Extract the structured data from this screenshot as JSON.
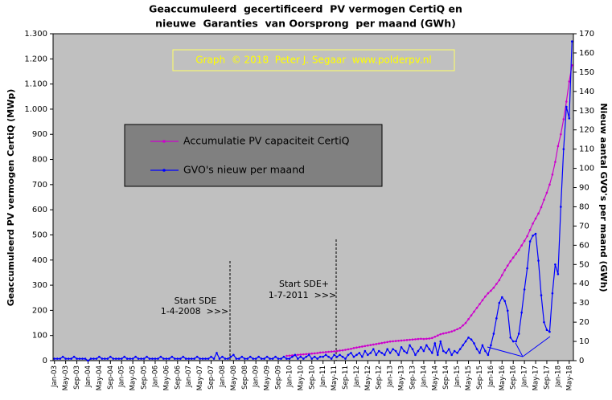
{
  "chart_data": {
    "type": "line",
    "title": [
      "Geaccumuleerd  gecertificeerd  PV vermogen CertiQ en",
      "nieuwe  Garanties  van Oorsprong  per maand (GWh)"
    ],
    "credit": "Graph  © 2018  Peter J. Segaar  www.polderpv.nl",
    "y_label": "Geaccumuleerd PV vermogen CertiQ (MWp)",
    "y2_label": "Nieuw aantal GVO's per maand (GWh)",
    "annotations": [
      {
        "lines": [
          "Start SDE",
          "1-4-2008  >>>"
        ]
      },
      {
        "lines": [
          "Start SDE+",
          "1-7-2011  >>>"
        ]
      }
    ],
    "categories": [
      "Jan-03",
      null,
      null,
      null,
      "May-03",
      null,
      null,
      null,
      "Sep-03",
      null,
      null,
      null,
      "Jan-04",
      null,
      null,
      null,
      "May-04",
      null,
      null,
      null,
      "Sep-04",
      null,
      null,
      null,
      "Jan-05",
      null,
      null,
      null,
      "May-05",
      null,
      null,
      null,
      "Sep-05",
      null,
      null,
      null,
      "Jan-06",
      null,
      null,
      null,
      "May-06",
      null,
      null,
      null,
      "Sep-06",
      null,
      null,
      null,
      "Jan-07",
      null,
      null,
      null,
      "May-07",
      null,
      null,
      null,
      "Sep-07",
      null,
      null,
      null,
      "Jan-08",
      null,
      null,
      null,
      "May-08",
      null,
      null,
      null,
      "Sep-08",
      null,
      null,
      null,
      "Jan-09",
      null,
      null,
      null,
      "May-09",
      null,
      null,
      null,
      "Sep-09",
      null,
      null,
      null,
      "Jan-10",
      null,
      null,
      null,
      "May-10",
      null,
      null,
      null,
      "Sep-10",
      null,
      null,
      null,
      "Jan-11",
      null,
      null,
      null,
      "May-11",
      null,
      null,
      null,
      "Sep-11",
      null,
      null,
      null,
      "Jan-12",
      null,
      null,
      null,
      "May-12",
      null,
      null,
      null,
      "Sep-12",
      null,
      null,
      null,
      "Jan-13",
      null,
      null,
      null,
      "May-13",
      null,
      null,
      null,
      "Sep-13",
      null,
      null,
      null,
      "Jan-14",
      null,
      null,
      null,
      "May-14",
      null,
      null,
      null,
      "Sep-14",
      null,
      null,
      null,
      "Jan-15",
      null,
      null,
      null,
      "May-15",
      null,
      null,
      null,
      "Sep-15",
      null,
      null,
      null,
      "Jan-16",
      null,
      null,
      null,
      "May-16",
      null,
      null,
      null,
      "Sep-16",
      null,
      null,
      null,
      "Jan-17",
      null,
      null,
      null,
      "May-17",
      null,
      null,
      null,
      "Sep-17",
      null,
      null,
      null,
      "Jan-18",
      null,
      null,
      null,
      "May-18",
      null
    ],
    "series": [
      {
        "name": "Accumulatie PV capaciteit CertiQ",
        "color": "#cc00cc",
        "axis": "y",
        "values": [
          null,
          null,
          null,
          null,
          null,
          null,
          null,
          null,
          null,
          null,
          null,
          null,
          null,
          null,
          null,
          null,
          null,
          null,
          null,
          null,
          null,
          null,
          null,
          null,
          null,
          null,
          null,
          null,
          null,
          null,
          null,
          null,
          null,
          null,
          null,
          null,
          null,
          null,
          null,
          null,
          null,
          null,
          null,
          null,
          null,
          null,
          null,
          null,
          null,
          null,
          null,
          null,
          null,
          null,
          null,
          null,
          null,
          null,
          null,
          null,
          null,
          null,
          null,
          null,
          null,
          null,
          null,
          null,
          null,
          null,
          null,
          null,
          null,
          null,
          null,
          null,
          null,
          null,
          null,
          null,
          null,
          null,
          null,
          19,
          20,
          21,
          22,
          23,
          24,
          25,
          26,
          27,
          28,
          29,
          30,
          32,
          33,
          34,
          35,
          36,
          37,
          38,
          40,
          41,
          43,
          45,
          47,
          50,
          52,
          54,
          56,
          58,
          60,
          62,
          64,
          66,
          68,
          70,
          72,
          74,
          76,
          77,
          78,
          79,
          80,
          81,
          82,
          83,
          84,
          85,
          86,
          87,
          86,
          87,
          88,
          90,
          95,
          100,
          105,
          108,
          110,
          113,
          116,
          120,
          125,
          130,
          140,
          150,
          165,
          180,
          195,
          210,
          225,
          240,
          255,
          268,
          278,
          290,
          305,
          320,
          340,
          360,
          378,
          395,
          410,
          425,
          440,
          458,
          476,
          495,
          520,
          545,
          565,
          585,
          610,
          640,
          668,
          700,
          740,
          790,
          853,
          900,
          960,
          1030,
          1110,
          1175
        ]
      },
      {
        "name": "GVO's nieuw per maand",
        "color": "#0000ff",
        "axis": "y2",
        "values": [
          1,
          1,
          1,
          2,
          1,
          1,
          1,
          2,
          1,
          1,
          1,
          1,
          0,
          1,
          1,
          1,
          2,
          1,
          1,
          1,
          2,
          1,
          1,
          1,
          1,
          2,
          1,
          1,
          1,
          2,
          1,
          1,
          1,
          2,
          1,
          1,
          1,
          1,
          2,
          1,
          1,
          1,
          2,
          1,
          1,
          1,
          2,
          1,
          1,
          1,
          1,
          2,
          1,
          1,
          1,
          1,
          2,
          1,
          4,
          1,
          2,
          1,
          1,
          2,
          3,
          1,
          1,
          2,
          1,
          1,
          2,
          1,
          1,
          2,
          1,
          1,
          2,
          1,
          1,
          2,
          1,
          1,
          2,
          1,
          1,
          2,
          3,
          1,
          2,
          1,
          2,
          3,
          1,
          2,
          1,
          2,
          2,
          3,
          2,
          1,
          3,
          2,
          3,
          2,
          1,
          3,
          4,
          2,
          3,
          4,
          2,
          5,
          3,
          4,
          6,
          3,
          5,
          4,
          3,
          6,
          4,
          6,
          5,
          3,
          7,
          5,
          4,
          8,
          6,
          3,
          5,
          7,
          5,
          8,
          6,
          4,
          9,
          3,
          10,
          5,
          4,
          6,
          3,
          5,
          4,
          6,
          8,
          10,
          12,
          11,
          9,
          6,
          4,
          8,
          5,
          3,
          8,
          14,
          22,
          30,
          33,
          31,
          26,
          12,
          10,
          10,
          14,
          25,
          37,
          48,
          62,
          65,
          66,
          52,
          34,
          20,
          16,
          15,
          35,
          50,
          45,
          80,
          110,
          132,
          126,
          166
        ]
      }
    ],
    "ylim": [
      0,
      1300
    ],
    "yticks": [
      0,
      100,
      200,
      300,
      400,
      500,
      600,
      700,
      800,
      900,
      {
        "value": 1000,
        "label": "1.000"
      },
      {
        "value": 1100,
        "label": "1.100"
      },
      {
        "value": 1200,
        "label": "1.200"
      },
      {
        "value": 1300,
        "label": "1.300"
      }
    ],
    "y2lim": [
      0,
      170
    ],
    "y2ticks": [
      0,
      10,
      20,
      30,
      40,
      50,
      60,
      70,
      80,
      90,
      100,
      110,
      120,
      130,
      140,
      150,
      160,
      170
    ],
    "grid": false
  }
}
